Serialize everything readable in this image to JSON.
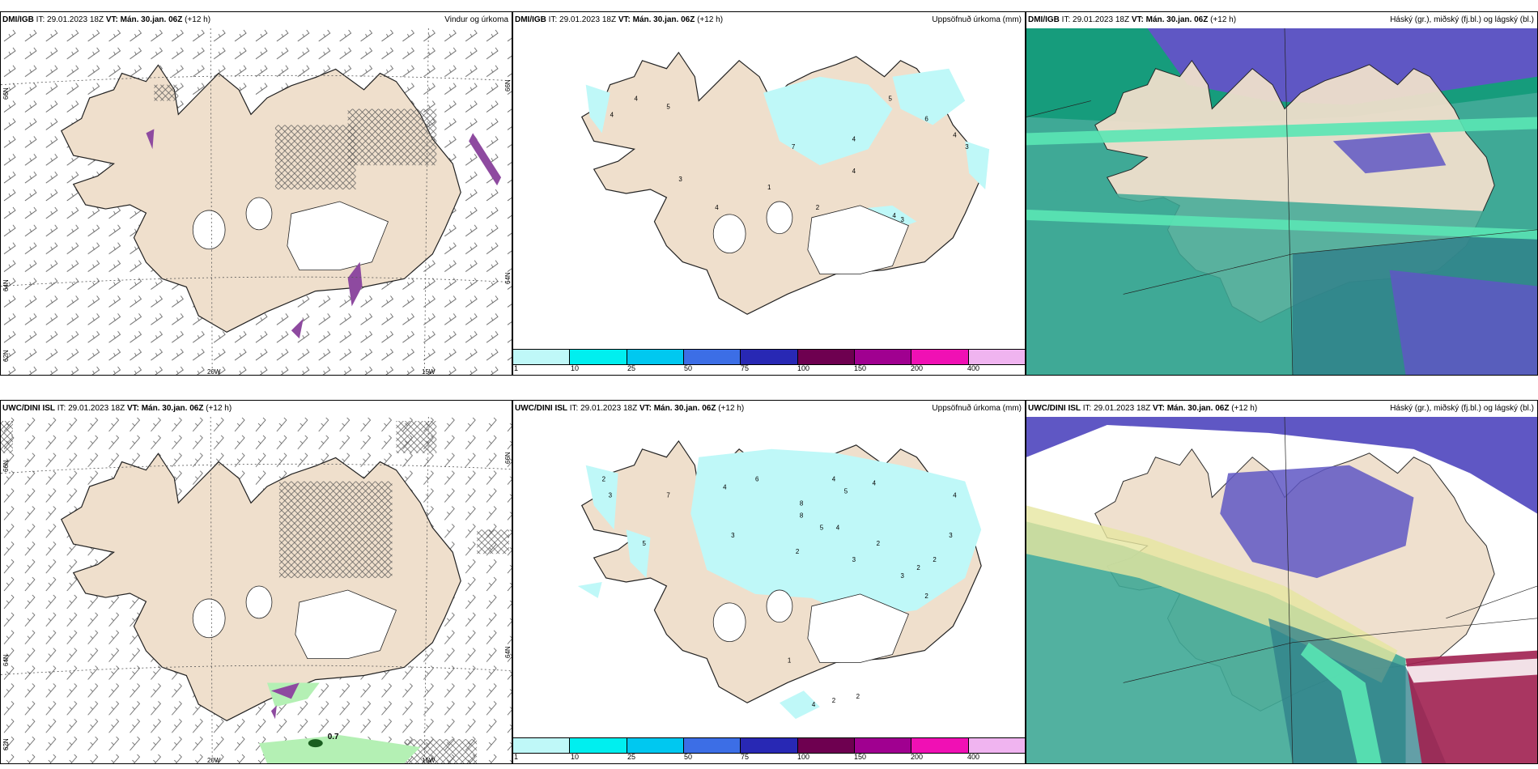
{
  "panels": [
    {
      "id": "p1",
      "model": "DMI/IGB",
      "init_label": " IT: 29.01.2023 18Z ",
      "vt_label": "VT: Mán. 30.jan. 06Z",
      "lead_label": " (+12 h)",
      "field": "Vindur og úrkoma",
      "lon_labels": [
        "20W",
        "15W"
      ],
      "lat_labels": [
        "66N",
        "64N",
        "62N"
      ],
      "lat_labels_right": [
        "66N",
        "64N"
      ]
    },
    {
      "id": "p2",
      "model": "DMI/IGB",
      "init_label": " IT: 29.01.2023 18Z ",
      "vt_label": "VT: Mán. 30.jan. 06Z",
      "lead_label": " (+12 h)",
      "field": "Uppsöfnuð úrkoma (mm)",
      "precip_labels": [
        "4",
        "5",
        "4",
        "3",
        "7",
        "1",
        "5",
        "4",
        "4",
        "6",
        "4",
        "3",
        "2",
        "4",
        "4",
        "3"
      ]
    },
    {
      "id": "p3",
      "model": "DMI/IGB",
      "init_label": " IT: 29.01.2023 18Z ",
      "vt_label": "VT: Mán. 30.jan. 06Z",
      "lead_label": " (+12 h)",
      "field": "Háský (gr.), miðský (fj.bl.) og lágský (bl.)"
    },
    {
      "id": "p4",
      "model": "UWC/DINI ISL",
      "init_label": " IT: 29.01.2023 18Z ",
      "vt_label": "VT: Mán. 30.jan. 06Z",
      "lead_label": " (+12 h)",
      "field": "",
      "lon_labels": [
        "20W",
        "15W"
      ],
      "lat_labels": [
        "66N",
        "64N",
        "62N"
      ],
      "lat_labels_right": [
        "66N",
        "64N"
      ],
      "precip_value": "0.7"
    },
    {
      "id": "p5",
      "model": "UWC/DINI ISL",
      "init_label": " IT: 29.01.2023 18Z ",
      "vt_label": "VT: Mán. 30.jan. 06Z",
      "lead_label": " (+12 h)",
      "field": "Uppsöfnuð úrkoma (mm)",
      "precip_labels": [
        "2",
        "3",
        "7",
        "4",
        "6",
        "8",
        "4",
        "5",
        "4",
        "3",
        "2",
        "8",
        "5",
        "4",
        "3",
        "2",
        "3",
        "2",
        "5",
        "4",
        "3",
        "2",
        "2",
        "1",
        "4",
        "2",
        "2"
      ]
    },
    {
      "id": "p6",
      "model": "UWC/DINI ISL",
      "init_label": " IT: 29.01.2023 18Z ",
      "vt_label": "VT: Mán. 30.jan. 06Z",
      "lead_label": " (+12 h)",
      "field": "Háský (gr.), miðský (fj.bl.) og lágský (bl.)"
    }
  ],
  "colorbar": {
    "labels": [
      "1",
      "10",
      "25",
      "50",
      "75",
      "100",
      "150",
      "200",
      "400"
    ],
    "colors": [
      "#bff8f8",
      "#00efef",
      "#00c8f0",
      "#3c6ee6",
      "#2828b4",
      "#6e0050",
      "#a00090",
      "#f010b4",
      "#f0b4f0"
    ]
  },
  "colors": {
    "land": "#efdfcc",
    "precip_light": "#bff8f8",
    "purple": "#8e4aa0",
    "cloud_high": "#5f57c4",
    "cloud_mid": "#169c7c",
    "cloud_low": "#3fa996",
    "cloud_green_light": "#5ae6b4",
    "red_band": "#a02050"
  }
}
